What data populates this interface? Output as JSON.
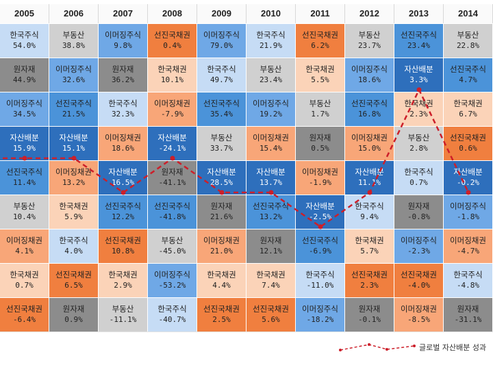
{
  "chart_data": {
    "type": "table",
    "years": [
      "2005",
      "2006",
      "2007",
      "2008",
      "2009",
      "2010",
      "2011",
      "2012",
      "2013",
      "2014"
    ],
    "columns": [
      [
        [
          "한국주식",
          "54.0%"
        ],
        [
          "원자재",
          "44.9%"
        ],
        [
          "이머징주식",
          "34.5%"
        ],
        [
          "자산배분",
          "15.9%"
        ],
        [
          "선진국주식",
          "11.4%"
        ],
        [
          "부동산",
          "10.4%"
        ],
        [
          "이머징채권",
          "4.1%"
        ],
        [
          "한국채권",
          "0.7%"
        ],
        [
          "선진국채권",
          "-6.4%"
        ]
      ],
      [
        [
          "부동산",
          "38.8%"
        ],
        [
          "이머징주식",
          "32.6%"
        ],
        [
          "선진국주식",
          "21.5%"
        ],
        [
          "자산배분",
          "15.1%"
        ],
        [
          "이머징채권",
          "13.2%"
        ],
        [
          "한국채권",
          "5.9%"
        ],
        [
          "한국주식",
          "4.0%"
        ],
        [
          "선진국채권",
          "6.5%"
        ],
        [
          "원자재",
          "0.9%"
        ]
      ],
      [
        [
          "이머징주식",
          "9.8%"
        ],
        [
          "원자재",
          "36.2%"
        ],
        [
          "한국주식",
          "32.3%"
        ],
        [
          "이머징채권",
          "18.6%"
        ],
        [
          "자산배분",
          "16.5%"
        ],
        [
          "선진국주식",
          "12.2%"
        ],
        [
          "선진국채권",
          "10.8%"
        ],
        [
          "한국채권",
          "2.9%"
        ],
        [
          "부동산",
          "-11.1%"
        ]
      ],
      [
        [
          "선진국채권",
          "0.4%"
        ],
        [
          "한국채권",
          "10.1%"
        ],
        [
          "이머징채권",
          "-7.9%"
        ],
        [
          "자산배분",
          "-24.1%"
        ],
        [
          "원자재",
          "-41.1%"
        ],
        [
          "선진국주식",
          "-41.8%"
        ],
        [
          "부동산",
          "-45.0%"
        ],
        [
          "이머징주식",
          "-53.2%"
        ],
        [
          "한국주식",
          "-40.7%"
        ]
      ],
      [
        [
          "이머징주식",
          "79.0%"
        ],
        [
          "한국주식",
          "49.7%"
        ],
        [
          "선진국주식",
          "35.4%"
        ],
        [
          "부동산",
          "33.7%"
        ],
        [
          "자산배분",
          "28.5%"
        ],
        [
          "원자재",
          "21.6%"
        ],
        [
          "이머징채권",
          "21.0%"
        ],
        [
          "한국채권",
          "4.4%"
        ],
        [
          "선진국채권",
          "2.5%"
        ]
      ],
      [
        [
          "한국주식",
          "21.9%"
        ],
        [
          "부동산",
          "23.4%"
        ],
        [
          "이머징주식",
          "19.2%"
        ],
        [
          "이머징채권",
          "15.4%"
        ],
        [
          "자산배분",
          "13.7%"
        ],
        [
          "선진국주식",
          "13.2%"
        ],
        [
          "원자재",
          "12.1%"
        ],
        [
          "한국채권",
          "7.4%"
        ],
        [
          "선진국채권",
          "5.6%"
        ]
      ],
      [
        [
          "선진국채권",
          "6.2%"
        ],
        [
          "한국채권",
          "5.5%"
        ],
        [
          "부동산",
          "1.7%"
        ],
        [
          "원자재",
          "0.5%"
        ],
        [
          "이머징채권",
          "-1.9%"
        ],
        [
          "자산배분",
          "-2.5%"
        ],
        [
          "선진국주식",
          "-6.9%"
        ],
        [
          "한국주식",
          "-11.0%"
        ],
        [
          "이머징주식",
          "-18.2%"
        ]
      ],
      [
        [
          "부동산",
          "23.7%"
        ],
        [
          "이머징주식",
          "18.6%"
        ],
        [
          "선진국주식",
          "16.8%"
        ],
        [
          "이머징채권",
          "15.0%"
        ],
        [
          "자산배분",
          "11.1%"
        ],
        [
          "한국주식",
          "9.4%"
        ],
        [
          "한국채권",
          "5.7%"
        ],
        [
          "선진국채권",
          "2.3%"
        ],
        [
          "원자재",
          "-0.1%"
        ]
      ],
      [
        [
          "선진국주식",
          "23.4%"
        ],
        [
          "자산배분",
          "3.3%"
        ],
        [
          "한국채권",
          "2.3%"
        ],
        [
          "부동산",
          "2.8%"
        ],
        [
          "한국주식",
          "0.7%"
        ],
        [
          "원자재",
          "-0.8%"
        ],
        [
          "이머징주식",
          "-2.3%"
        ],
        [
          "선진국채권",
          "-4.0%"
        ],
        [
          "이머징채권",
          "-8.5%"
        ]
      ],
      [
        [
          "부동산",
          "22.8%"
        ],
        [
          "선진국주식",
          "4.7%"
        ],
        [
          "한국채권",
          "6.7%"
        ],
        [
          "선진국채권",
          "0.6%"
        ],
        [
          "자산배분",
          "-0.2%"
        ],
        [
          "이머징주식",
          "-1.8%"
        ],
        [
          "이머징채권",
          "-4.7%"
        ],
        [
          "한국주식",
          "-4.8%"
        ],
        [
          "원자재",
          "-31.1%"
        ]
      ]
    ],
    "series": [
      {
        "name": "글로벌 자산배분 성과",
        "values": [
          15.9,
          15.1,
          16.5,
          -24.1,
          28.5,
          13.7,
          -2.5,
          11.1,
          3.3,
          -0.2
        ]
      }
    ],
    "legend_position": "bottom-right",
    "colors": {
      "한국주식": "#c6dcf5",
      "부동산": "#d0d0d0",
      "이머징주식": "#6fa8e6",
      "선진국채권": "#f07f3f",
      "원자재": "#8c8c8c",
      "한국채권": "#fbd3b8",
      "자산배분": "#2e6fbc",
      "선진국주식": "#4b93d9",
      "이머징채권": "#f8a678",
      "line": "#cc1f2a"
    }
  }
}
